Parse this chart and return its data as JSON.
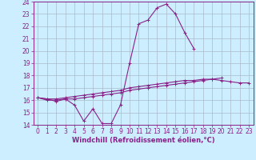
{
  "xlabel": "Windchill (Refroidissement éolien,°C)",
  "background_color": "#cceeff",
  "grid_color": "#aabbcc",
  "line_color": "#882288",
  "x_values": [
    0,
    1,
    2,
    3,
    4,
    5,
    6,
    7,
    8,
    9,
    10,
    11,
    12,
    13,
    14,
    15,
    16,
    17,
    18,
    19,
    20,
    21,
    22,
    23
  ],
  "series1": [
    16.2,
    16.1,
    15.9,
    16.1,
    15.6,
    14.3,
    15.3,
    14.1,
    14.1,
    15.6,
    19.0,
    22.2,
    22.5,
    23.5,
    23.8,
    23.0,
    21.5,
    20.2,
    null,
    null,
    null,
    null,
    null,
    null
  ],
  "series2": [
    16.2,
    16.0,
    16.0,
    16.1,
    16.1,
    16.2,
    16.3,
    16.4,
    16.5,
    16.6,
    16.8,
    16.9,
    17.0,
    17.1,
    17.2,
    17.3,
    17.4,
    17.5,
    17.6,
    17.7,
    17.8,
    null,
    null,
    null
  ],
  "series3": [
    16.2,
    16.1,
    16.1,
    16.2,
    16.3,
    16.4,
    16.5,
    16.6,
    16.7,
    16.8,
    17.0,
    17.1,
    17.2,
    17.3,
    17.4,
    17.5,
    17.6,
    17.6,
    17.7,
    17.7,
    17.6,
    17.5,
    17.4,
    17.4
  ],
  "ylim": [
    14,
    24
  ],
  "xlim": [
    -0.5,
    23.5
  ],
  "yticks": [
    14,
    15,
    16,
    17,
    18,
    19,
    20,
    21,
    22,
    23,
    24
  ],
  "xticks": [
    0,
    1,
    2,
    3,
    4,
    5,
    6,
    7,
    8,
    9,
    10,
    11,
    12,
    13,
    14,
    15,
    16,
    17,
    18,
    19,
    20,
    21,
    22,
    23
  ],
  "tick_fontsize": 5.5,
  "xlabel_fontsize": 6.0
}
